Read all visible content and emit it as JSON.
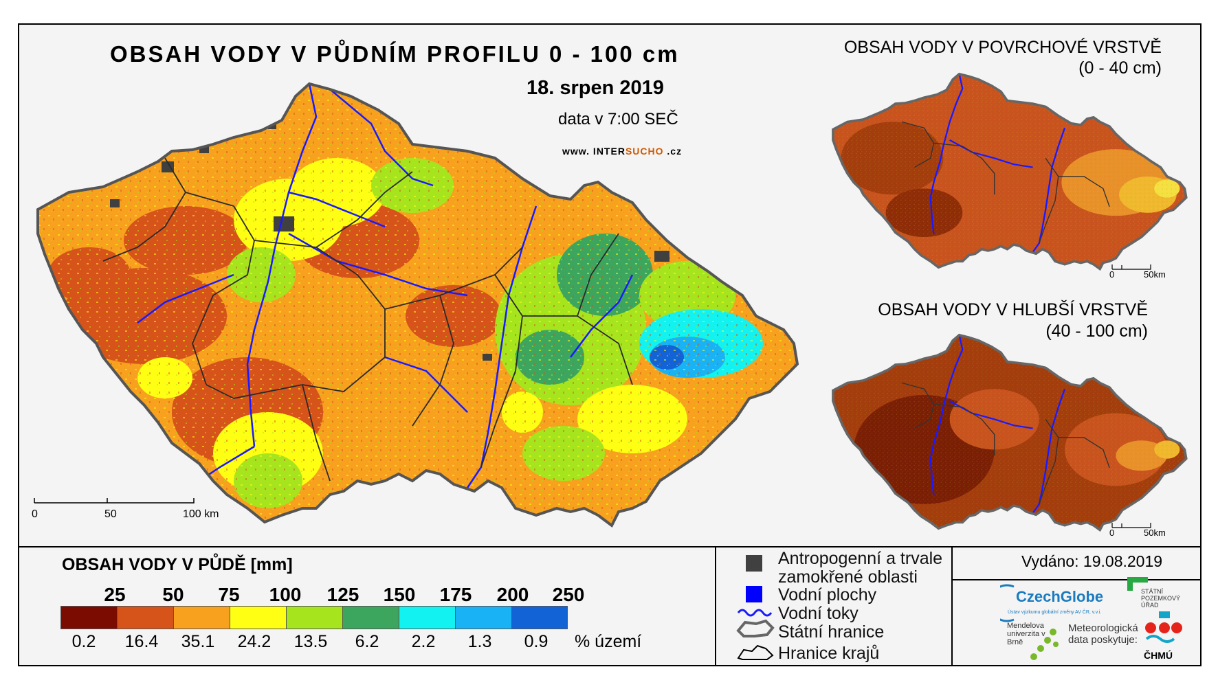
{
  "main_map": {
    "title": "OBSAH VODY V PŮDNÍM PROFILU 0 - 100 cm",
    "date": "18. srpen 2019",
    "time": "data v 7:00 SEČ",
    "website_prefix": "www. INTER",
    "website_highlight": "SUCHO",
    "website_suffix": " .cz",
    "scale_labels": [
      "0",
      "50",
      "100 km"
    ]
  },
  "inset_surface": {
    "title_line1": "OBSAH VODY V POVRCHOVÉ VRSTVĚ",
    "title_line2": "(0 - 40 cm)",
    "scale_labels": [
      "0",
      "50km"
    ]
  },
  "inset_deep": {
    "title_line1": "OBSAH VODY V HLUBŠÍ VRSTVĚ",
    "title_line2": "(40 - 100 cm)",
    "scale_labels": [
      "0",
      "50km"
    ]
  },
  "legend": {
    "title": "OBSAH VODY V PŮDĚ [mm]",
    "class_breaks": [
      "25",
      "50",
      "75",
      "100",
      "125",
      "150",
      "175",
      "200",
      "250"
    ],
    "class_colors": [
      "#7a0c02",
      "#d6531a",
      "#f7a11f",
      "#ffff13",
      "#a6e51e",
      "#3ca65e",
      "#12f2f0",
      "#18b2f5",
      "#1163d6"
    ],
    "percent_territory": [
      "0.2",
      "16.4",
      "35.1",
      "24.2",
      "13.5",
      "6.2",
      "2.2",
      "1.3",
      "0.9"
    ],
    "percent_unit": "% území"
  },
  "symbols": {
    "anthropogenic_line1": "Antropogenní a trvale",
    "anthropogenic_line2": "zamokřené oblasti",
    "water_bodies": "Vodní plochy",
    "rivers": "Vodní toky",
    "state_border": "Státní hranice",
    "region_border": "Hranice krajů",
    "colors": {
      "anthropogenic": "#404040",
      "water": "#0000ff",
      "river": "#1a1aff"
    }
  },
  "credits": {
    "issued": "Vydáno: 19.08.2019",
    "czechglobe": "CzechGlobe",
    "czechglobe_sub": "Ústav výzkumu globální změny AV ČR, v.v.i.",
    "spu": "STÁTNÍ POZEMKOVÝ ÚŘAD",
    "mendel": "Mendelova univerzita v Brně",
    "meteo": "Meteorologická data poskytuje:",
    "chmu": "ČHMÚ"
  }
}
